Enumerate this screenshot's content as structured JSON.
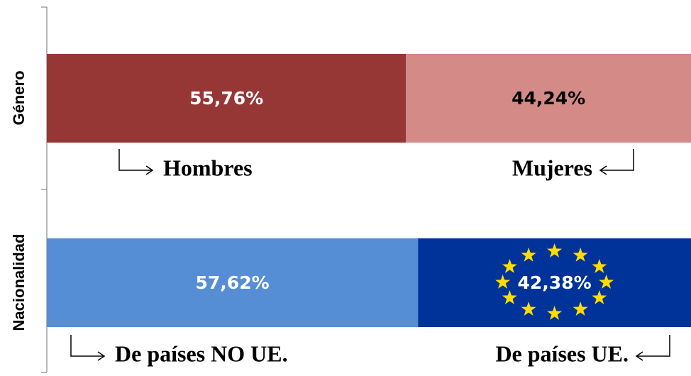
{
  "chart_data": {
    "type": "stacked-bar-100",
    "categories": [
      "Género",
      "Nacionalidad"
    ],
    "xlim": [
      0,
      100
    ],
    "groups": [
      {
        "segments": [
          {
            "name": "Hombres",
            "value": 55.76,
            "value_label": "55,76%",
            "color": "#963735",
            "label_color": "#ffffff"
          },
          {
            "name": "Mujeres",
            "value": 44.24,
            "value_label": "44,24%",
            "color": "#d48a86",
            "label_color": "#000000"
          }
        ]
      },
      {
        "segments": [
          {
            "name": "De países NO UE.",
            "value": 57.62,
            "value_label": "57,62%",
            "color": "#558ed5",
            "label_color": "#ffffff"
          },
          {
            "name": "De países UE.",
            "value": 42.38,
            "value_label": "42,38%",
            "color": "#003399",
            "label_color": "#ffffff"
          }
        ]
      }
    ]
  }
}
